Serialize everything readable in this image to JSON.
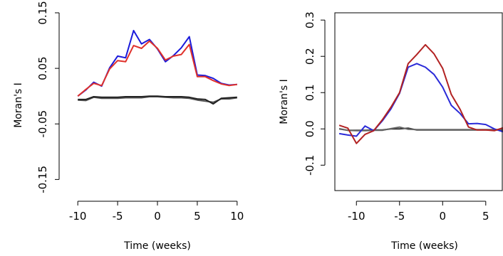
{
  "chart_data": [
    {
      "type": "line",
      "xlabel": "Time (weeks)",
      "ylabel": "Moran's I",
      "xlim": [
        -11,
        11
      ],
      "ylim": [
        -0.17,
        0.15
      ],
      "xticks": [
        -10,
        -5,
        0,
        5,
        10
      ],
      "xtick_labels": [
        "-10",
        "-5",
        "0",
        "5",
        "10"
      ],
      "yticks": [
        -0.15,
        -0.05,
        0.05,
        0.15
      ],
      "ytick_labels": [
        "-0.15",
        "-0.05",
        "0.05",
        "0.15"
      ],
      "frame": "left-bottom",
      "grid": false,
      "x": [
        -10,
        -9,
        -8,
        -7,
        -6,
        -5,
        -4,
        -3,
        -2,
        -1,
        0,
        1,
        2,
        3,
        4,
        5,
        6,
        7,
        8,
        9,
        10
      ],
      "series": [
        {
          "color": "#555555",
          "values": [
            -0.007,
            -0.008,
            -0.002,
            -0.004,
            -0.004,
            -0.004,
            -0.003,
            -0.003,
            -0.003,
            -0.001,
            -0.001,
            -0.002,
            -0.003,
            -0.003,
            -0.004,
            -0.007,
            -0.009,
            -0.011,
            -0.005,
            -0.005,
            -0.003
          ]
        },
        {
          "color": "#222222",
          "values": [
            -0.006,
            -0.006,
            -0.001,
            -0.002,
            -0.002,
            -0.002,
            -0.001,
            -0.001,
            -0.001,
            0.0,
            0.0,
            -0.001,
            -0.001,
            -0.001,
            -0.002,
            -0.005,
            -0.006,
            -0.014,
            -0.004,
            -0.003,
            -0.002
          ]
        },
        {
          "color": "#1a1adb",
          "values": [
            0.0,
            0.011,
            0.025,
            0.018,
            0.051,
            0.072,
            0.069,
            0.118,
            0.094,
            0.102,
            0.085,
            0.062,
            0.073,
            0.087,
            0.107,
            0.038,
            0.037,
            0.032,
            0.023,
            0.02,
            0.021
          ]
        },
        {
          "color": "#e0312b",
          "values": [
            0.0,
            0.012,
            0.023,
            0.019,
            0.049,
            0.064,
            0.062,
            0.091,
            0.086,
            0.099,
            0.086,
            0.065,
            0.072,
            0.075,
            0.093,
            0.035,
            0.035,
            0.028,
            0.022,
            0.019,
            0.021
          ]
        }
      ]
    },
    {
      "type": "line",
      "xlabel": "Time (weeks)",
      "ylabel": "Moran's I",
      "xlim": [
        -12.5,
        7
      ],
      "ylim": [
        -0.17,
        0.32
      ],
      "xticks": [
        -10,
        -5,
        0,
        5
      ],
      "xtick_labels": [
        "-10",
        "-5",
        "0",
        "5"
      ],
      "yticks": [
        -0.1,
        0.0,
        0.1,
        0.2,
        0.3
      ],
      "ytick_labels": [
        "-0.1",
        "0.0",
        "0.1",
        "0.2",
        "0.3"
      ],
      "frame": "box",
      "grid": false,
      "x": [
        -12,
        -11,
        -10,
        -9,
        -8,
        -7,
        -6,
        -5,
        -4,
        -3,
        -2,
        -1,
        0,
        1,
        2,
        3,
        4,
        5,
        6,
        7
      ],
      "series": [
        {
          "color": "#333333",
          "values": [
            0.0,
            -0.004,
            -0.004,
            -0.004,
            -0.003,
            -0.003,
            0.0,
            0.0,
            0.002,
            -0.003,
            -0.003,
            -0.003,
            -0.003,
            -0.003,
            -0.003,
            -0.003,
            -0.003,
            -0.003,
            -0.003,
            -0.003
          ]
        },
        {
          "color": "#666666",
          "values": [
            0.001,
            -0.004,
            -0.005,
            -0.005,
            -0.004,
            -0.004,
            0.001,
            0.005,
            -0.001,
            -0.002,
            -0.002,
            -0.002,
            -0.002,
            -0.002,
            -0.002,
            -0.002,
            -0.002,
            -0.002,
            -0.002,
            -0.002
          ]
        },
        {
          "color": "#2a2ad8",
          "values": [
            -0.013,
            -0.017,
            -0.02,
            0.008,
            -0.005,
            0.022,
            0.055,
            0.098,
            0.17,
            0.18,
            0.17,
            0.15,
            0.115,
            0.065,
            0.043,
            0.014,
            0.015,
            0.012,
            0.0,
            -0.008
          ]
        },
        {
          "color": "#b22222",
          "values": [
            0.01,
            0.002,
            -0.04,
            -0.015,
            -0.005,
            0.025,
            0.06,
            0.1,
            0.18,
            0.205,
            0.232,
            0.207,
            0.167,
            0.095,
            0.055,
            0.005,
            -0.003,
            -0.003,
            -0.005,
            0.003
          ]
        }
      ]
    }
  ]
}
